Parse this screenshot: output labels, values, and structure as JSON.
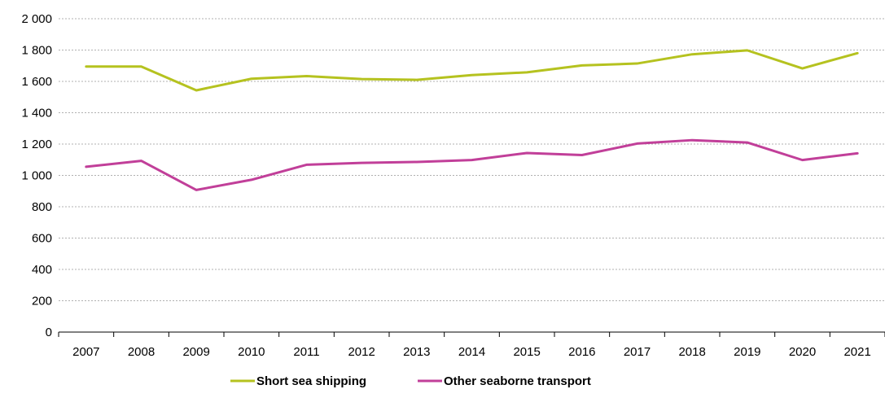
{
  "chart_data": {
    "type": "line",
    "title": "",
    "xlabel": "",
    "ylabel": "",
    "categories": [
      "2007",
      "2008",
      "2009",
      "2010",
      "2011",
      "2012",
      "2013",
      "2014",
      "2015",
      "2016",
      "2017",
      "2018",
      "2019",
      "2020",
      "2021"
    ],
    "series": [
      {
        "name": "Short sea shipping",
        "color": "#b5c21f",
        "values": [
          1695,
          1695,
          1543,
          1617,
          1634,
          1615,
          1610,
          1640,
          1658,
          1702,
          1714,
          1773,
          1798,
          1683,
          1780
        ]
      },
      {
        "name": "Other seaborne transport",
        "color": "#c13f99",
        "values": [
          1055,
          1093,
          907,
          972,
          1068,
          1080,
          1086,
          1098,
          1143,
          1130,
          1203,
          1225,
          1210,
          1098,
          1141
        ]
      }
    ],
    "ylim": [
      0,
      2000
    ],
    "yticks": [
      0,
      200,
      400,
      600,
      800,
      1000,
      1200,
      1400,
      1600,
      1800,
      2000
    ],
    "ytick_labels": [
      "0",
      "200",
      "400",
      "600",
      "800",
      "1 000",
      "1 200",
      "1 400",
      "1 600",
      "1 800",
      "2 000"
    ],
    "grid": true,
    "legend_position": "bottom-center"
  }
}
